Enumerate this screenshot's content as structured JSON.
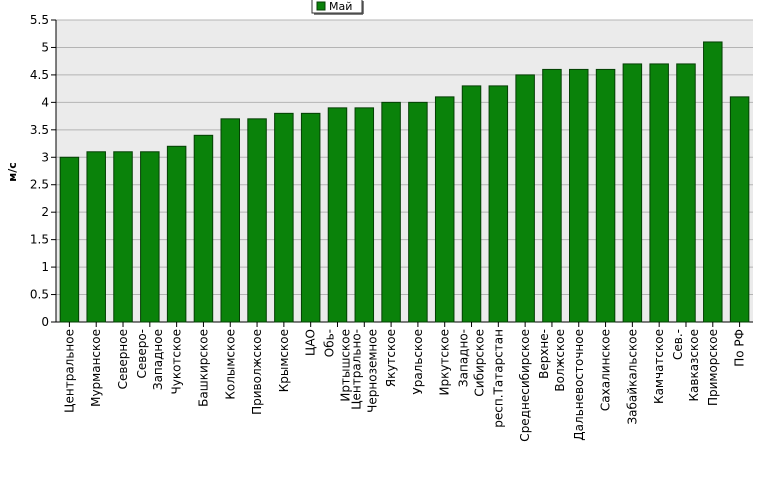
{
  "chart_data": {
    "type": "bar",
    "ylabel": "м/с",
    "ylim": [
      0,
      5.5
    ],
    "yticks": [
      "0",
      "0.5",
      "1",
      "1.5",
      "2",
      "2.5",
      "3",
      "3.5",
      "4",
      "4.5",
      "5",
      "5.5"
    ],
    "legend": {
      "placement": "top-center"
    },
    "grid": true,
    "series": [
      {
        "name": "Май",
        "color": "#0a820a",
        "values": [
          3.0,
          3.1,
          3.1,
          3.1,
          3.2,
          3.4,
          3.7,
          3.7,
          3.8,
          3.8,
          3.9,
          3.9,
          4.0,
          4.0,
          4.1,
          4.3,
          4.3,
          4.5,
          4.6,
          4.6,
          4.6,
          4.7,
          4.7,
          4.7,
          5.1,
          4.1
        ]
      }
    ],
    "categories": [
      [
        "Центральное"
      ],
      [
        "Мурманское"
      ],
      [
        "Северное"
      ],
      [
        "Северо-",
        "Западное"
      ],
      [
        "Чукотское"
      ],
      [
        "Башкирское"
      ],
      [
        "Колымское"
      ],
      [
        "Приволжское"
      ],
      [
        "Крымское"
      ],
      [
        "ЦАО"
      ],
      [
        "Обь-",
        "Иртышское"
      ],
      [
        "Центрально-",
        "Черноземное"
      ],
      [
        "Якутское"
      ],
      [
        "Уральское"
      ],
      [
        "Иркутское"
      ],
      [
        "Западно-",
        "Сибирское"
      ],
      [
        "респ.Татарстан"
      ],
      [
        "Среднесибирское"
      ],
      [
        "Верхне-",
        "Волжское"
      ],
      [
        "Дальневосточное"
      ],
      [
        "Сахалинское"
      ],
      [
        "Забайкальское"
      ],
      [
        "Камчатское"
      ],
      [
        "Сев.-",
        "Кавказское"
      ],
      [
        "Приморское"
      ],
      [
        "По РФ"
      ]
    ],
    "colors": {
      "plot_background": "#ebebeb",
      "grid": "#b4b4b4",
      "bar_fill": "#0a820a",
      "bar_stroke": "#043f04"
    }
  }
}
